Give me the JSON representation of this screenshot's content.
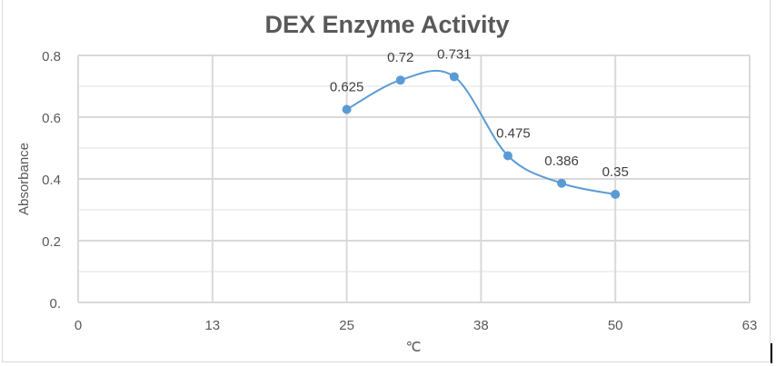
{
  "chart_data": {
    "type": "line",
    "smooth": true,
    "title": "DEX Enzyme Activity",
    "xlabel": "℃",
    "ylabel": "Absorbance",
    "xlim": [
      0,
      62.5
    ],
    "ylim": [
      0,
      0.8
    ],
    "x_ticks": [
      0,
      12.5,
      25,
      37.5,
      50,
      62.5
    ],
    "x_tick_labels": [
      "0",
      "13",
      "25",
      "38",
      "50",
      "63"
    ],
    "y_ticks": [
      0.8,
      0.6,
      0.4,
      0.2,
      0
    ],
    "y_tick_labels": [
      "0.8",
      "0.6",
      "0.4",
      "0.2",
      "0."
    ],
    "y_minor_step": 0.1,
    "grid": true,
    "series": [
      {
        "name": "Absorbance",
        "color": "#5B9BD5",
        "x": [
          25,
          30,
          35,
          40,
          45,
          50
        ],
        "values": [
          0.625,
          0.72,
          0.731,
          0.475,
          0.386,
          0.35
        ],
        "data_labels": [
          "0.625",
          "0.72",
          "0.731",
          "0.475",
          "0.386",
          "0.35"
        ]
      }
    ]
  }
}
